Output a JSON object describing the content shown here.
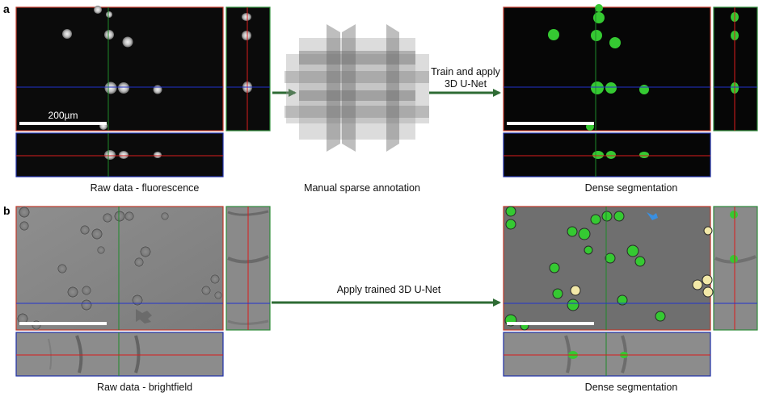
{
  "panels": {
    "a": {
      "letter": "a",
      "raw_caption": "Raw data - fluorescence",
      "middle_caption": "Manual sparse annotation",
      "arrow_text_line1": "Train and apply",
      "arrow_text_line2": "3D U-Net",
      "seg_caption": "Dense segmentation",
      "scale_bar_label": "200µm"
    },
    "b": {
      "letter": "b",
      "raw_caption": "Raw data - brightfield",
      "arrow_text": "Apply trained 3D U-Net",
      "seg_caption": "Dense segmentation"
    }
  },
  "colors": {
    "arrow": "#2e6b34",
    "xy_frame": "#c0392b",
    "yz_frame": "#2e8b3a",
    "xz_frame": "#1f2fa8",
    "crosshair_red": "#d91c1c",
    "crosshair_green": "#1f8a2a",
    "crosshair_blue": "#2233cc",
    "segmentation": "#35c932",
    "segmentation_yellow": "#f3e9a8",
    "segmentation_blue": "#3a8fe0"
  }
}
